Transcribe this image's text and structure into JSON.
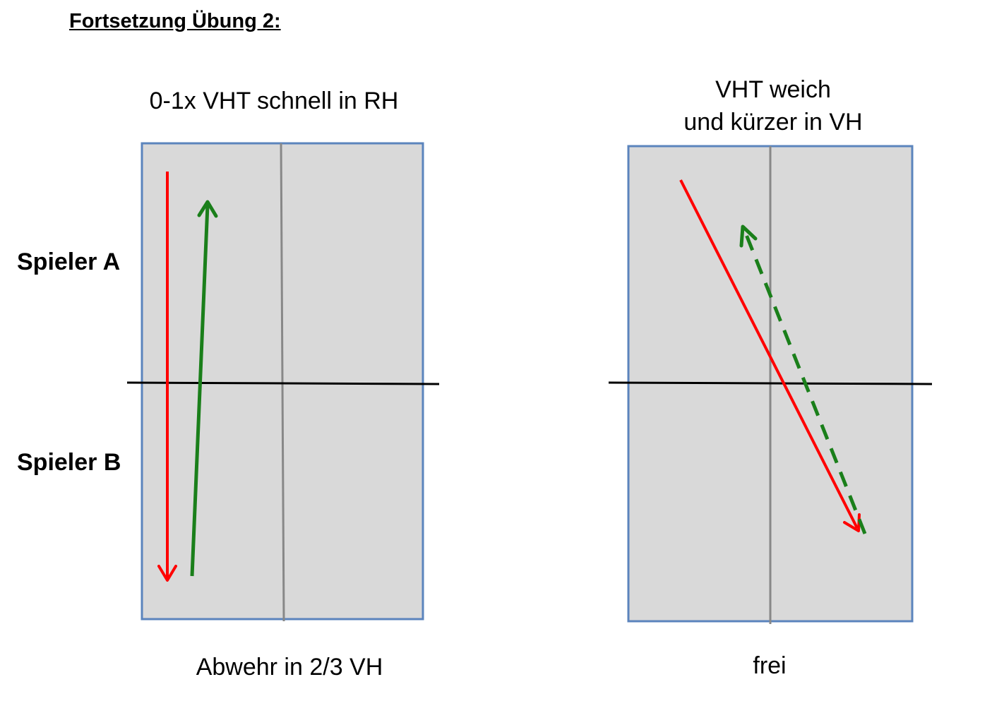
{
  "title": "Fortsetzung Übung 2:",
  "players": {
    "a": "Spieler A",
    "b": "Spieler B"
  },
  "tables": [
    {
      "top_caption": "0-1x VHT schnell in RH",
      "bottom_caption": "Abwehr in 2/3 VH"
    },
    {
      "top_caption_line1": "VHT weich",
      "top_caption_line2": "und kürzer in VH",
      "bottom_caption": "frei"
    }
  ],
  "colors": {
    "table_fill": "#d9d9d9",
    "table_border": "#5b84bd",
    "center_line": "#888888",
    "net": "#000000",
    "arrow_red": "#ff0000",
    "arrow_green": "#1a7f1a"
  }
}
